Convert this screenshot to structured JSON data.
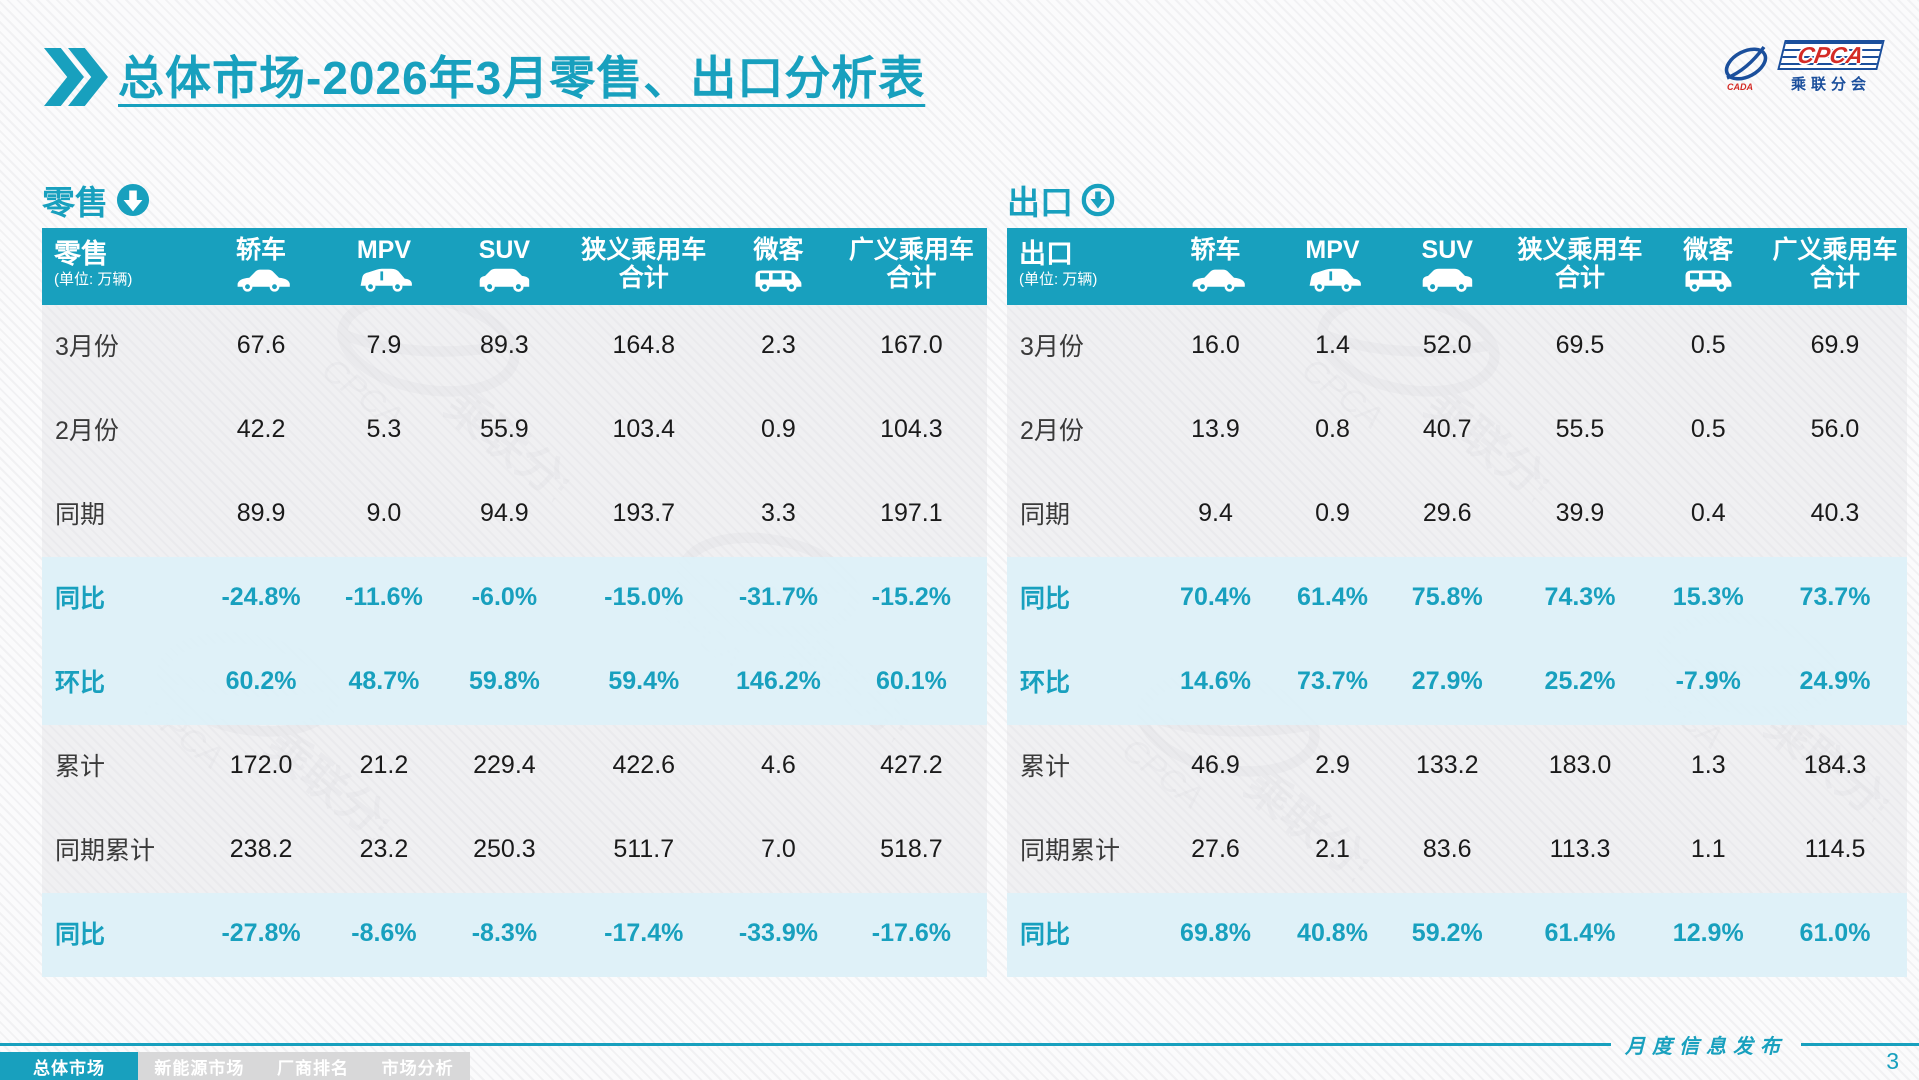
{
  "page": {
    "title": "总体市场-2026年3月零售、出口分析表",
    "footer_note": "月度信息发布",
    "page_number": "3"
  },
  "logo": {
    "en": "CPCA",
    "cn": "乘联分会",
    "cada": "CADA"
  },
  "colors": {
    "accent_teal": "#18A0BE",
    "header_bg": "#18A0BE",
    "highlight_row_bg": "#DDF0F8",
    "normal_row_bg": "#EAEAEC",
    "logo_blue": "#1B4F9C",
    "logo_red": "#D42B26",
    "nav_inactive_bg": "#D8D8D9"
  },
  "nav": {
    "tabs": [
      {
        "label": "总体市场",
        "active": true
      },
      {
        "label": "新能源市场",
        "active": false
      },
      {
        "label": "厂商排名",
        "active": false
      },
      {
        "label": "市场分析",
        "active": false
      }
    ]
  },
  "tables": [
    {
      "id": "retail",
      "section_label": "零售",
      "section_icon": "filled-circle-down-arrow",
      "unit_note": "(单位: 万辆)",
      "columns": [
        {
          "label": "轿车",
          "icon": "sedan-icon"
        },
        {
          "label": "MPV",
          "icon": "mpv-icon"
        },
        {
          "label": "SUV",
          "icon": "suv-icon"
        },
        {
          "label": "狭义乘用车",
          "label2": "合计"
        },
        {
          "label": "微客",
          "icon": "microvan-icon"
        },
        {
          "label": "广义乘用车",
          "label2": "合计"
        }
      ],
      "rows": [
        {
          "label": "3月份",
          "highlight": false,
          "values": [
            "67.6",
            "7.9",
            "89.3",
            "164.8",
            "2.3",
            "167.0"
          ]
        },
        {
          "label": "2月份",
          "highlight": false,
          "values": [
            "42.2",
            "5.3",
            "55.9",
            "103.4",
            "0.9",
            "104.3"
          ]
        },
        {
          "label": "同期",
          "highlight": false,
          "values": [
            "89.9",
            "9.0",
            "94.9",
            "193.7",
            "3.3",
            "197.1"
          ]
        },
        {
          "label": "同比",
          "highlight": true,
          "values": [
            "-24.8%",
            "-11.6%",
            "-6.0%",
            "-15.0%",
            "-31.7%",
            "-15.2%"
          ]
        },
        {
          "label": "环比",
          "highlight": true,
          "values": [
            "60.2%",
            "48.7%",
            "59.8%",
            "59.4%",
            "146.2%",
            "60.1%"
          ]
        },
        {
          "label": "累计",
          "highlight": false,
          "values": [
            "172.0",
            "21.2",
            "229.4",
            "422.6",
            "4.6",
            "427.2"
          ]
        },
        {
          "label": "同期累计",
          "highlight": false,
          "values": [
            "238.2",
            "23.2",
            "250.3",
            "511.7",
            "7.0",
            "518.7"
          ]
        },
        {
          "label": "同比",
          "highlight": true,
          "values": [
            "-27.8%",
            "-8.6%",
            "-8.3%",
            "-17.4%",
            "-33.9%",
            "-17.6%"
          ]
        }
      ]
    },
    {
      "id": "export",
      "section_label": "出口",
      "section_icon": "ring-circle-down-arrow",
      "unit_note": "(单位: 万辆)",
      "columns": [
        {
          "label": "轿车",
          "icon": "sedan-icon"
        },
        {
          "label": "MPV",
          "icon": "mpv-icon"
        },
        {
          "label": "SUV",
          "icon": "suv-icon"
        },
        {
          "label": "狭义乘用车",
          "label2": "合计"
        },
        {
          "label": "微客",
          "icon": "microvan-icon"
        },
        {
          "label": "广义乘用车",
          "label2": "合计"
        }
      ],
      "rows": [
        {
          "label": "3月份",
          "highlight": false,
          "values": [
            "16.0",
            "1.4",
            "52.0",
            "69.5",
            "0.5",
            "69.9"
          ]
        },
        {
          "label": "2月份",
          "highlight": false,
          "values": [
            "13.9",
            "0.8",
            "40.7",
            "55.5",
            "0.5",
            "56.0"
          ]
        },
        {
          "label": "同期",
          "highlight": false,
          "values": [
            "9.4",
            "0.9",
            "29.6",
            "39.9",
            "0.4",
            "40.3"
          ]
        },
        {
          "label": "同比",
          "highlight": true,
          "values": [
            "70.4%",
            "61.4%",
            "75.8%",
            "74.3%",
            "15.3%",
            "73.7%"
          ]
        },
        {
          "label": "环比",
          "highlight": true,
          "values": [
            "14.6%",
            "73.7%",
            "27.9%",
            "25.2%",
            "-7.9%",
            "24.9%"
          ]
        },
        {
          "label": "累计",
          "highlight": false,
          "values": [
            "46.9",
            "2.9",
            "133.2",
            "183.0",
            "1.3",
            "184.3"
          ]
        },
        {
          "label": "同期累计",
          "highlight": false,
          "values": [
            "27.6",
            "2.1",
            "83.6",
            "113.3",
            "1.1",
            "114.5"
          ]
        },
        {
          "label": "同比",
          "highlight": true,
          "values": [
            "69.8%",
            "40.8%",
            "59.2%",
            "61.4%",
            "12.9%",
            "61.0%"
          ]
        }
      ]
    }
  ]
}
